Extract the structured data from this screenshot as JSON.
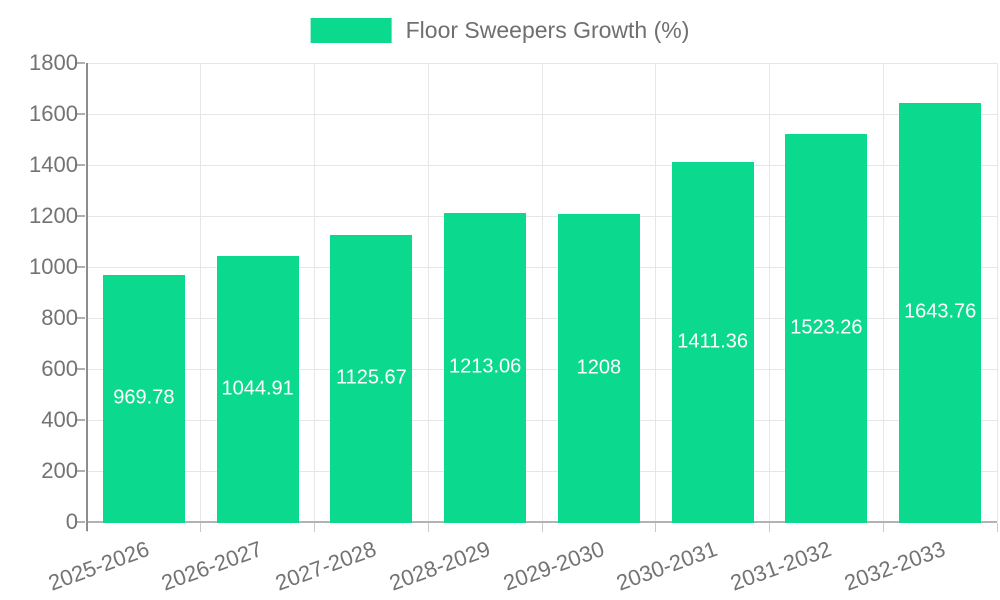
{
  "legend": {
    "label": "Floor Sweepers Growth (%)"
  },
  "chart_data": {
    "type": "bar",
    "title": "Floor Sweepers Growth (%)",
    "categories": [
      "2025-2026",
      "2026-2027",
      "2027-2028",
      "2028-2029",
      "2029-2030",
      "2030-2031",
      "2031-2032",
      "2032-2033"
    ],
    "values": [
      969.78,
      1044.91,
      1125.67,
      1213.06,
      1208,
      1411.36,
      1523.26,
      1643.76
    ],
    "xlabel": "",
    "ylabel": "",
    "ylim": [
      0,
      1800
    ],
    "ytick_step": 200,
    "yticks": [
      0,
      200,
      400,
      600,
      800,
      1000,
      1200,
      1400,
      1600,
      1800
    ],
    "grid": true,
    "legend_position": "top-center",
    "value_labels_shown": true,
    "colors": {
      "bar": "#0bda8e",
      "value_text": "#ffffff",
      "axis_text": "#737373",
      "gridline": "#e6e6e6",
      "x_axis_line": "#b3b3b3",
      "y_axis_line": "#8d8d8d",
      "background": "#ffffff"
    }
  }
}
